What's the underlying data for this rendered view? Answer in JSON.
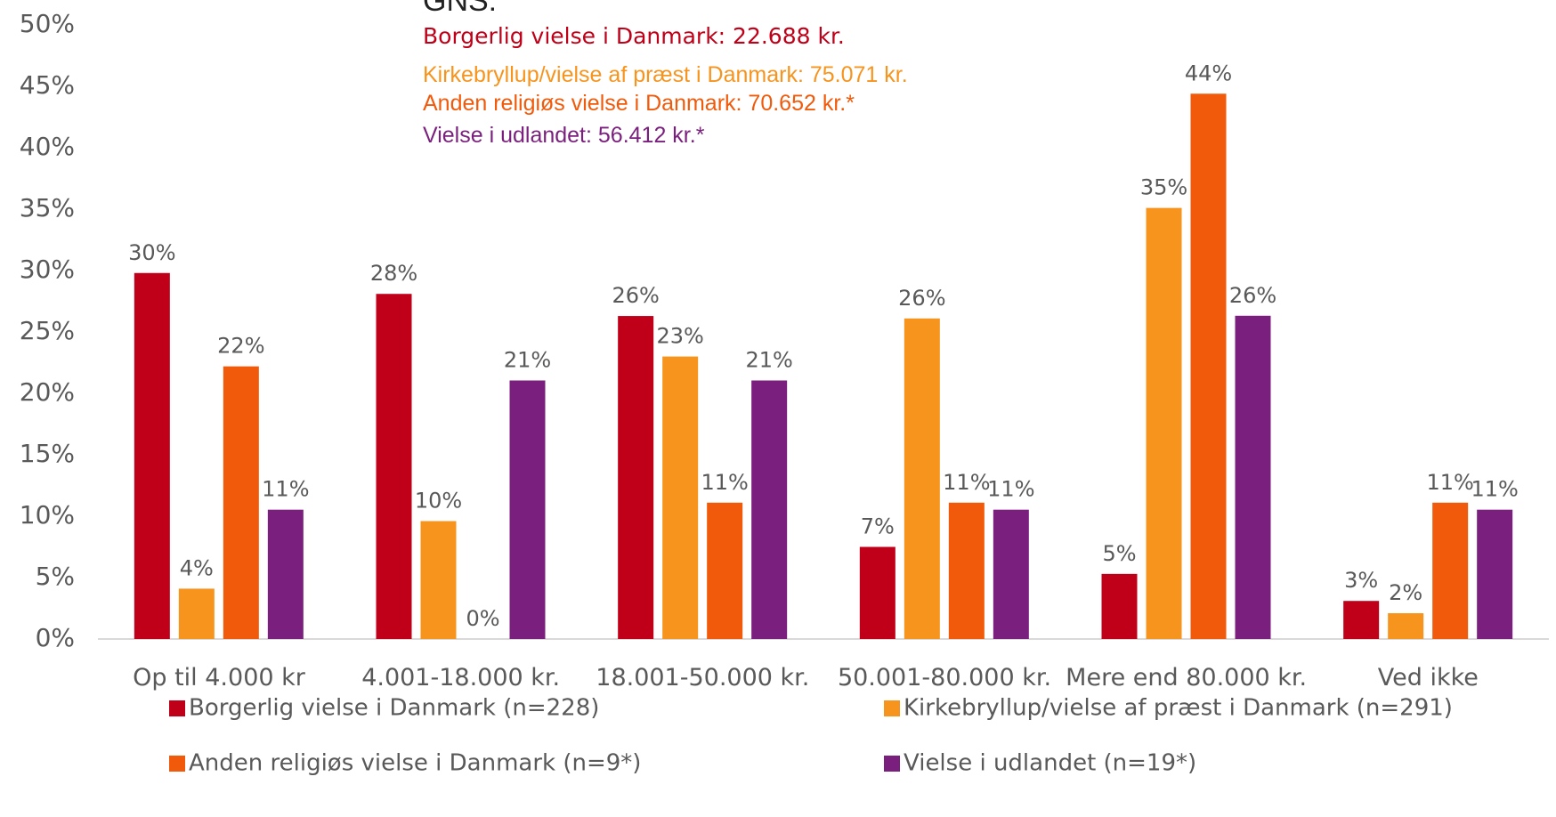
{
  "chart_data": {
    "type": "bar",
    "annotations": [
      {
        "text": "GNS:",
        "color": "#222222"
      },
      {
        "text": "Borgerlig vielse i Danmark: 22.688 kr.",
        "color": "#c00018"
      },
      {
        "text": "Kirkebryllup/vielse af præst i Danmark: 75.071 kr.",
        "color": "#f7941d"
      },
      {
        "text": "Anden religiøs vielse i Danmark: 70.652 kr.*",
        "color": "#f05a0a"
      },
      {
        "text": "Vielse i udlandet: 56.412 kr.*",
        "color": "#7b1f7e"
      }
    ],
    "categories": [
      "Op til 4.000 kr",
      "4.001-18.000 kr.",
      "18.001-50.000 kr.",
      "50.001-80.000 kr.",
      "Mere end 80.000 kr.",
      "Ved ikke"
    ],
    "series": [
      {
        "name": "Borgerlig vielse i Danmark (n=228)",
        "color": "#c00018",
        "values": [
          29.8,
          28.1,
          26.3,
          7.5,
          5.3,
          3.1
        ],
        "value_labels": [
          "30%",
          "28%",
          "26%",
          "7%",
          "5%",
          "3%"
        ]
      },
      {
        "name": "Kirkebryllup/vielse af præst i Danmark (n=291)",
        "color": "#f7941d",
        "values": [
          4.1,
          9.6,
          23.0,
          26.1,
          35.1,
          2.1
        ],
        "value_labels": [
          "4%",
          "10%",
          "23%",
          "26%",
          "35%",
          "2%"
        ]
      },
      {
        "name": "Anden religiøs vielse i Danmark (n=9*)",
        "color": "#f05a0a",
        "values": [
          22.2,
          0,
          11.1,
          11.1,
          44.4,
          11.1
        ],
        "value_labels": [
          "22%",
          "0%",
          "11%",
          "11%",
          "44%",
          "11%"
        ]
      },
      {
        "name": "Vielse i udlandet (n=19*)",
        "color": "#7b1f7e",
        "values": [
          10.53,
          21.05,
          21.05,
          10.53,
          26.32,
          10.53
        ],
        "value_labels": [
          "11%",
          "21%",
          "21%",
          "11%",
          "26%",
          "11%"
        ]
      }
    ],
    "ylim": [
      0,
      50
    ],
    "yticks": [
      {
        "value": 0,
        "label": "0%"
      },
      {
        "value": 5,
        "label": "5%"
      },
      {
        "value": 10,
        "label": "10%"
      },
      {
        "value": 15,
        "label": "15%"
      },
      {
        "value": 20,
        "label": "20%"
      },
      {
        "value": 25,
        "label": "25%"
      },
      {
        "value": 30,
        "label": "30%"
      },
      {
        "value": 35,
        "label": "35%"
      },
      {
        "value": 40,
        "label": "40%"
      },
      {
        "value": 45,
        "label": "45%"
      },
      {
        "value": 50,
        "label": "50%"
      }
    ],
    "grid": false,
    "legend": "bottom"
  }
}
